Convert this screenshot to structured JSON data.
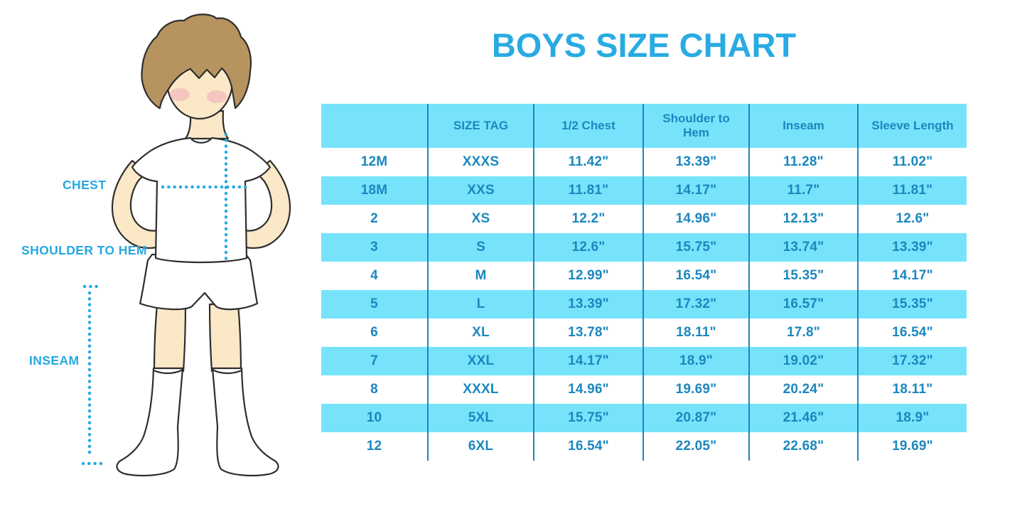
{
  "title": "BOYS SIZE CHART",
  "figure": {
    "labels": {
      "chest": "CHEST",
      "shoulder_to_hem": "SHOULDER TO HEM",
      "inseam": "INSEAM"
    }
  },
  "chart_data": {
    "type": "table",
    "title": "BOYS SIZE CHART",
    "columns": [
      "",
      "SIZE TAG",
      "1/2 Chest",
      "Shoulder to Hem",
      "Inseam",
      "Sleeve Length"
    ],
    "rows": [
      [
        "12M",
        "XXXS",
        "11.42\"",
        "13.39\"",
        "11.28\"",
        "11.02\""
      ],
      [
        "18M",
        "XXS",
        "11.81\"",
        "14.17\"",
        "11.7\"",
        "11.81\""
      ],
      [
        "2",
        "XS",
        "12.2\"",
        "14.96\"",
        "12.13\"",
        "12.6\""
      ],
      [
        "3",
        "S",
        "12.6\"",
        "15.75\"",
        "13.74\"",
        "13.39\""
      ],
      [
        "4",
        "M",
        "12.99\"",
        "16.54\"",
        "15.35\"",
        "14.17\""
      ],
      [
        "5",
        "L",
        "13.39\"",
        "17.32\"",
        "16.57\"",
        "15.35\""
      ],
      [
        "6",
        "XL",
        "13.78\"",
        "18.11\"",
        "17.8\"",
        "16.54\""
      ],
      [
        "7",
        "XXL",
        "14.17\"",
        "18.9\"",
        "19.02\"",
        "17.32\""
      ],
      [
        "8",
        "XXXL",
        "14.96\"",
        "19.69\"",
        "20.24\"",
        "18.11\""
      ],
      [
        "10",
        "5XL",
        "15.75\"",
        "20.87\"",
        "21.46\"",
        "18.9\""
      ],
      [
        "12",
        "6XL",
        "16.54\"",
        "22.05\"",
        "22.68\"",
        "19.69\""
      ]
    ],
    "row_striping": "white / cyan alternating, header cyan",
    "grid": "vertical dividers only, no outer border"
  },
  "colors": {
    "title_blue": "#29ABE2",
    "label_blue": "#25A8E0",
    "cell_cyan": "#76E3FB",
    "text_blue": "#1B87BE",
    "divider_blue": "#1B87BE",
    "dotted_line": "#25A8E0",
    "skin": "#FBE8C7",
    "hair": "#B7945F",
    "blush": "#F3A9BC"
  }
}
